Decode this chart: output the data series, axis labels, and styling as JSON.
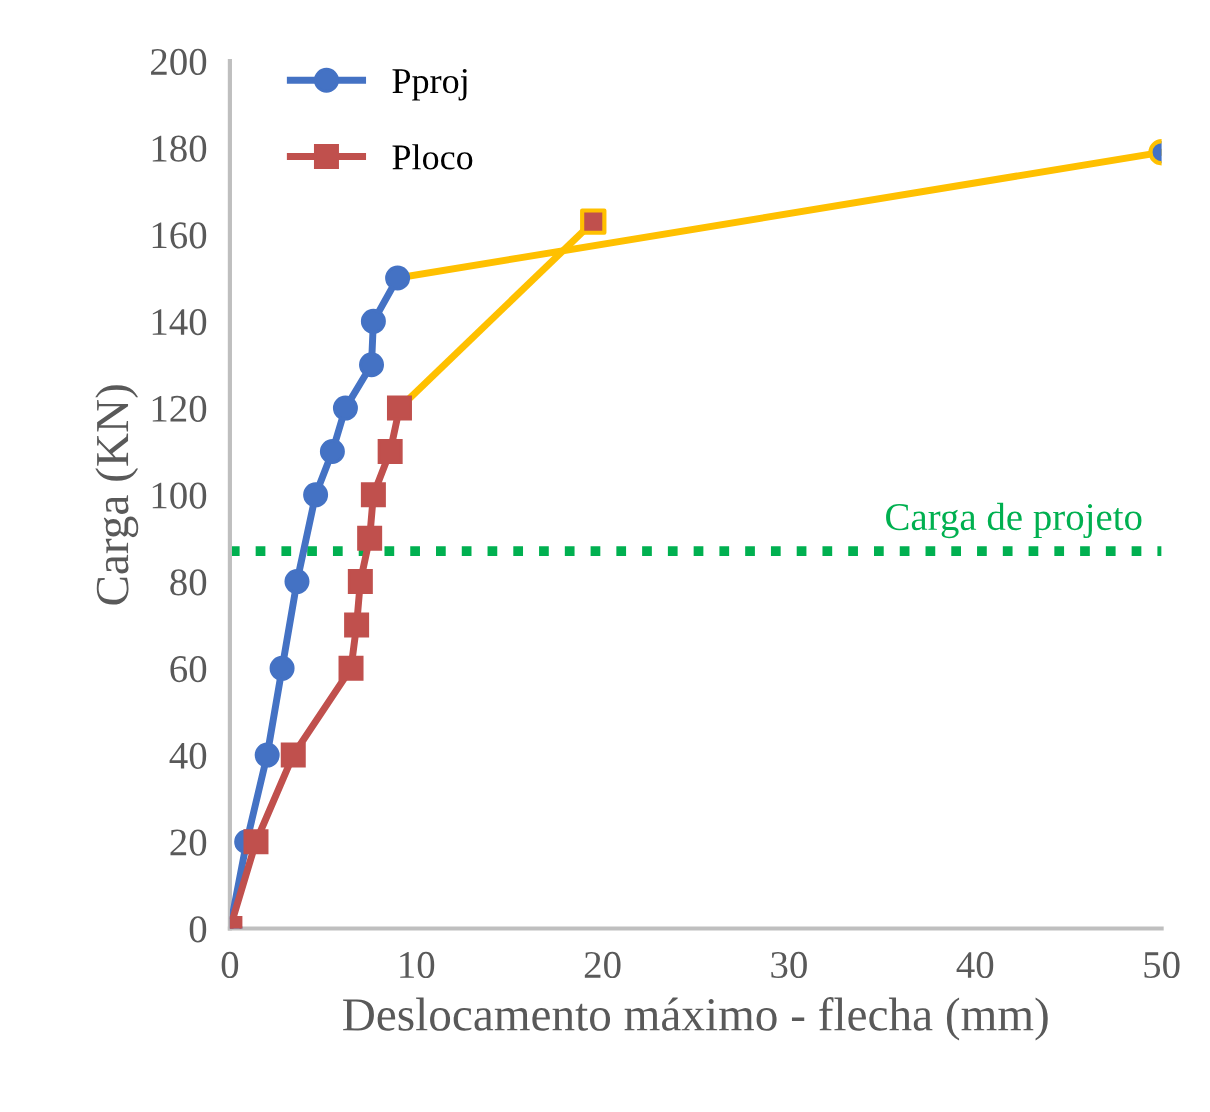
{
  "chart_data": {
    "type": "line",
    "xlabel": "Deslocamento máximo - flecha (mm)",
    "ylabel": "Carga (KN)",
    "xlim": [
      0,
      50
    ],
    "xticks": [
      0,
      10,
      20,
      30,
      40,
      50
    ],
    "ylim": [
      0,
      200
    ],
    "yticks": [
      0,
      20,
      40,
      60,
      80,
      100,
      120,
      140,
      160,
      180,
      200
    ],
    "grid": false,
    "legend": "top left",
    "line_style": "solid",
    "series": [
      {
        "name": "Pproj",
        "color": "#4472c4",
        "marker": "circle",
        "x": [
          0,
          0.9,
          2,
          2.8,
          3.6,
          4.6,
          5.5,
          6.2,
          7.6,
          7.7,
          9.0
        ],
        "values": [
          0,
          20,
          40,
          60,
          80,
          100,
          110,
          120,
          130,
          140,
          150
        ]
      },
      {
        "name": "Ploco",
        "color": "#c0504d",
        "marker": "square",
        "x": [
          0,
          1.4,
          3.4,
          6.5,
          6.8,
          7.0,
          7.5,
          7.7,
          8.6,
          9.1
        ],
        "values": [
          0,
          20,
          40,
          60,
          70,
          80,
          90,
          100,
          110,
          120
        ]
      },
      {
        "color": "#ffc000",
        "marker": "none",
        "x": [
          9.0,
          50
        ],
        "values": [
          150,
          179
        ]
      },
      {
        "color": "#ffc000",
        "marker": "none",
        "x": [
          9.1,
          19.5
        ],
        "values": [
          120,
          163
        ]
      },
      {
        "type": "scatter",
        "color": "#4472c4",
        "marker": "circle",
        "x": [
          50
        ],
        "values": [
          179
        ]
      },
      {
        "type": "scatter",
        "color": "#c0504d",
        "marker": "square",
        "x": [
          19.5
        ],
        "values": [
          163
        ]
      }
    ],
    "ref_lines": [
      {
        "axis": "y",
        "value": 87,
        "label": "Carga de projeto",
        "color": "#00b050",
        "line_style": "dotted"
      }
    ]
  }
}
